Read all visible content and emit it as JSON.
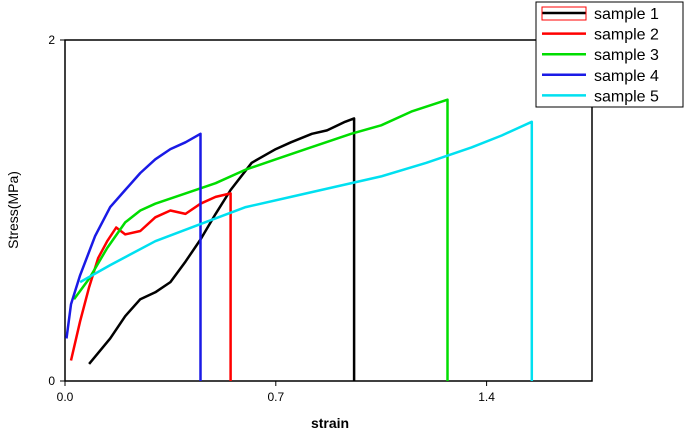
{
  "chart_data": {
    "type": "line",
    "title": "",
    "xlabel": "strain",
    "ylabel": "Stress(MPa)",
    "xlim": [
      0.0,
      1.75
    ],
    "ylim": [
      0,
      2
    ],
    "x_ticks": [
      0.0,
      0.7,
      1.4
    ],
    "x_tick_labels": [
      "0.0",
      "0.7",
      "1.4"
    ],
    "y_ticks": [
      0,
      2
    ],
    "y_tick_labels": [
      "0",
      "2"
    ],
    "grid": false,
    "legend_position": "top-right",
    "series": [
      {
        "name": "sample 1",
        "color": "#000000",
        "points": [
          [
            0.08,
            0.1
          ],
          [
            0.15,
            0.25
          ],
          [
            0.2,
            0.38
          ],
          [
            0.25,
            0.48
          ],
          [
            0.3,
            0.52
          ],
          [
            0.35,
            0.58
          ],
          [
            0.4,
            0.7
          ],
          [
            0.45,
            0.83
          ],
          [
            0.5,
            0.98
          ],
          [
            0.55,
            1.12
          ],
          [
            0.62,
            1.28
          ],
          [
            0.7,
            1.36
          ],
          [
            0.75,
            1.4
          ],
          [
            0.82,
            1.45
          ],
          [
            0.87,
            1.47
          ],
          [
            0.93,
            1.52
          ],
          [
            0.96,
            1.54
          ]
        ],
        "drop_to": 0
      },
      {
        "name": "sample 2",
        "color": "#ff0000",
        "points": [
          [
            0.02,
            0.12
          ],
          [
            0.05,
            0.35
          ],
          [
            0.08,
            0.55
          ],
          [
            0.11,
            0.72
          ],
          [
            0.14,
            0.82
          ],
          [
            0.17,
            0.9
          ],
          [
            0.2,
            0.86
          ],
          [
            0.25,
            0.88
          ],
          [
            0.3,
            0.96
          ],
          [
            0.35,
            1.0
          ],
          [
            0.4,
            0.98
          ],
          [
            0.45,
            1.04
          ],
          [
            0.5,
            1.08
          ],
          [
            0.55,
            1.1
          ]
        ],
        "drop_to": 0
      },
      {
        "name": "sample 3",
        "color": "#00dd00",
        "points": [
          [
            0.03,
            0.48
          ],
          [
            0.08,
            0.6
          ],
          [
            0.14,
            0.78
          ],
          [
            0.2,
            0.93
          ],
          [
            0.25,
            1.0
          ],
          [
            0.3,
            1.04
          ],
          [
            0.4,
            1.1
          ],
          [
            0.5,
            1.16
          ],
          [
            0.6,
            1.24
          ],
          [
            0.7,
            1.3
          ],
          [
            0.8,
            1.36
          ],
          [
            0.95,
            1.45
          ],
          [
            1.05,
            1.5
          ],
          [
            1.15,
            1.58
          ],
          [
            1.27,
            1.65
          ]
        ],
        "drop_to": 0
      },
      {
        "name": "sample 4",
        "color": "#1a1ae6",
        "points": [
          [
            0.005,
            0.25
          ],
          [
            0.02,
            0.45
          ],
          [
            0.05,
            0.62
          ],
          [
            0.1,
            0.85
          ],
          [
            0.15,
            1.02
          ],
          [
            0.2,
            1.12
          ],
          [
            0.25,
            1.22
          ],
          [
            0.3,
            1.3
          ],
          [
            0.35,
            1.36
          ],
          [
            0.4,
            1.4
          ],
          [
            0.45,
            1.45
          ]
        ],
        "drop_to": 0
      },
      {
        "name": "sample 5",
        "color": "#00e0f0",
        "points": [
          [
            0.05,
            0.58
          ],
          [
            0.15,
            0.68
          ],
          [
            0.3,
            0.82
          ],
          [
            0.45,
            0.92
          ],
          [
            0.6,
            1.02
          ],
          [
            0.75,
            1.08
          ],
          [
            0.9,
            1.14
          ],
          [
            1.05,
            1.2
          ],
          [
            1.2,
            1.28
          ],
          [
            1.35,
            1.37
          ],
          [
            1.45,
            1.44
          ],
          [
            1.55,
            1.52
          ]
        ],
        "drop_to": 0
      }
    ]
  }
}
